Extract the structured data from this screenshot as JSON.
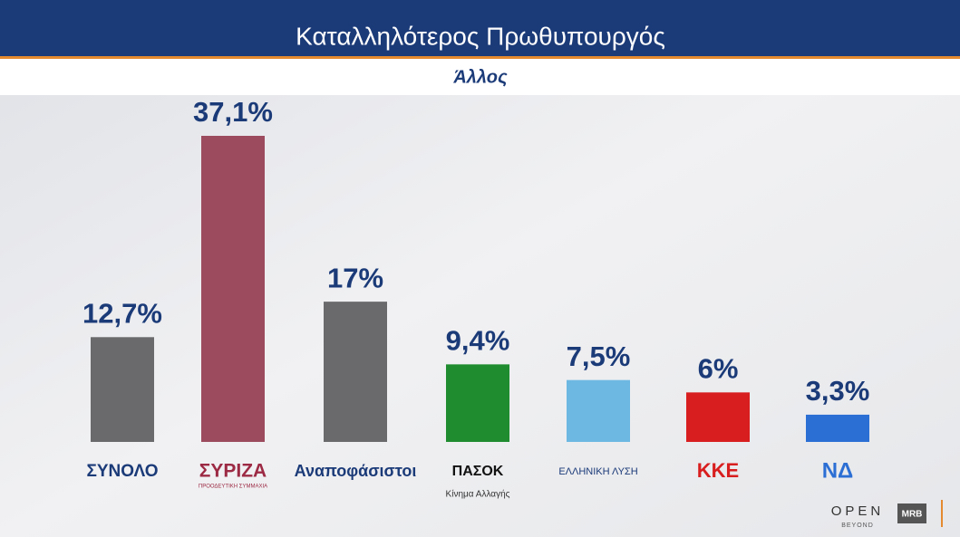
{
  "header": {
    "title": "Καταλληλότερος Πρωθυπουργός",
    "subtitle": "Άλλος"
  },
  "chart_data": {
    "type": "bar",
    "categories": [
      "ΣΥΝΟΛΟ",
      "ΣΥΡΙΖΑ",
      "Αναποφάσιστοι",
      "ΠΑΣΟΚ",
      "ΕΛΛΗΝΙΚΗ ΛΥΣΗ",
      "ΚΚΕ",
      "ΝΔ"
    ],
    "category_notes": [
      null,
      "ΠΡΟΟΔΕΥΤΙΚΗ ΣΥΜΜΑΧΙΑ",
      null,
      "Κίνημα Αλλαγής",
      null,
      null,
      null
    ],
    "values": [
      12.7,
      37.1,
      17,
      9.4,
      7.5,
      6,
      3.3
    ],
    "value_labels": [
      "12,7%",
      "37,1%",
      "17%",
      "9,4%",
      "7,5%",
      "6%",
      "3,3%"
    ],
    "colors": [
      "#6a6a6c",
      "#9c4a5d",
      "#6a6a6c",
      "#1e8c2f",
      "#6db8e3",
      "#d81e1e",
      "#2c6fd4"
    ]
  },
  "branding": {
    "channel": "OPEN",
    "channel_tagline": "BEYOND",
    "pollster": "MRB"
  }
}
